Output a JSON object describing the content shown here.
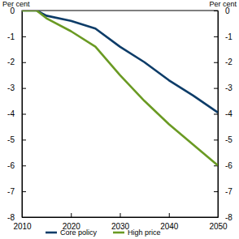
{
  "chart_data": {
    "type": "line",
    "y_label": "Per cent",
    "y2_label": "Per cent",
    "x": [
      2010,
      2013,
      2015,
      2020,
      2025,
      2030,
      2035,
      2040,
      2045,
      2050
    ],
    "series": [
      {
        "name": "Core policy",
        "color": "#0d3c68",
        "values": [
          0,
          0,
          -0.2,
          -0.4,
          -0.7,
          -1.4,
          -2.0,
          -2.7,
          -3.3,
          -3.95
        ]
      },
      {
        "name": "High price",
        "color": "#6a9a23",
        "values": [
          0,
          0,
          -0.3,
          -0.8,
          -1.4,
          -2.5,
          -3.5,
          -4.4,
          -5.2,
          -6.0
        ]
      }
    ],
    "xlim": [
      2010,
      2050
    ],
    "xticks": [
      2010,
      2020,
      2030,
      2040,
      2050
    ],
    "ylim": [
      -8,
      0
    ],
    "yticks": [
      0,
      -1,
      -2,
      -3,
      -4,
      -5,
      -6,
      -7,
      -8
    ],
    "y2lim": [
      -8,
      0
    ],
    "y2ticks": [
      0,
      -1,
      -2,
      -3,
      -4,
      -5,
      -6,
      -7,
      -8
    ],
    "grid": false,
    "legend": "bottom"
  }
}
